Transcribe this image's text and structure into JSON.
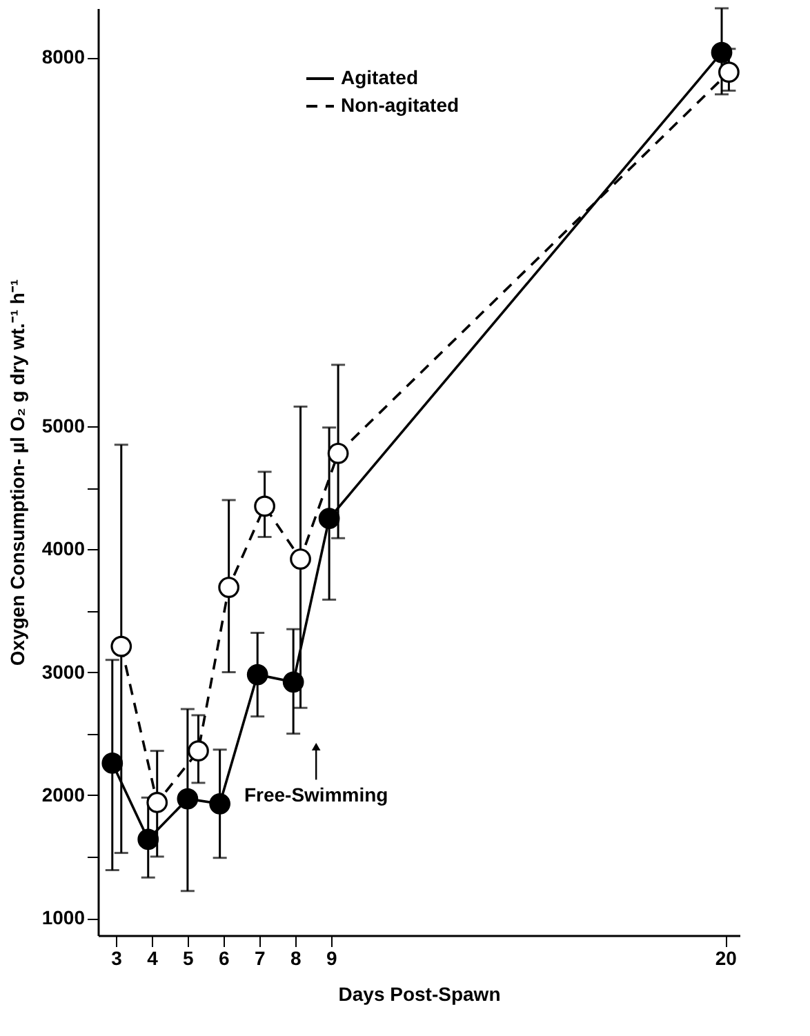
{
  "chart_data": {
    "type": "line",
    "xlabel": "Days Post-Spawn",
    "ylabel": "Oxygen Consumption- µl O₂ g dry wt.⁻¹ h⁻¹",
    "xlim": [
      2.5,
      20.4
    ],
    "xticks": [
      3,
      4,
      5,
      6,
      7,
      8,
      9,
      20
    ],
    "ylim": [
      860,
      8400
    ],
    "yticks": [
      1000,
      {
        "value": 1500,
        "label": null
      },
      2000,
      {
        "value": 2500,
        "label": null
      },
      3000,
      {
        "value": 3500,
        "label": null
      },
      4000,
      {
        "value": 4500,
        "label": null
      },
      5000,
      8000
    ],
    "grid": false,
    "legend": "top left",
    "series": [
      {
        "name": "Agitated",
        "color": "#000000",
        "marker": "circle",
        "line_style": "solid",
        "x": [
          2.9,
          3.9,
          5.0,
          5.9,
          6.95,
          7.95,
          8.95,
          19.9
        ],
        "values": [
          2260,
          1640,
          1970,
          1930,
          2980,
          2920,
          4250,
          8040
        ],
        "errors": [
          [
            1390,
            3100
          ],
          [
            1330,
            1980
          ],
          [
            1220,
            2700
          ],
          [
            1490,
            2370
          ],
          [
            2640,
            3320
          ],
          [
            2500,
            3350
          ],
          [
            3590,
            4990
          ],
          [
            7700,
            8400
          ]
        ]
      },
      {
        "name": "Non-agitated",
        "color": "#000000",
        "marker": "circle",
        "line_style": "dashed",
        "x": [
          3.15,
          4.15,
          5.3,
          6.15,
          7.15,
          8.15,
          9.2,
          20.1
        ],
        "values": [
          3210,
          1940,
          2360,
          3690,
          4350,
          3920,
          4780,
          7880
        ],
        "errors": [
          [
            1530,
            4850
          ],
          [
            1500,
            2360
          ],
          [
            2100,
            2650
          ],
          [
            3000,
            4400
          ],
          [
            4100,
            4630
          ],
          [
            2710,
            5160
          ],
          [
            4090,
            5500
          ],
          [
            7730,
            8070
          ]
        ]
      }
    ],
    "annotations": [
      "Free-Swimming"
    ]
  }
}
